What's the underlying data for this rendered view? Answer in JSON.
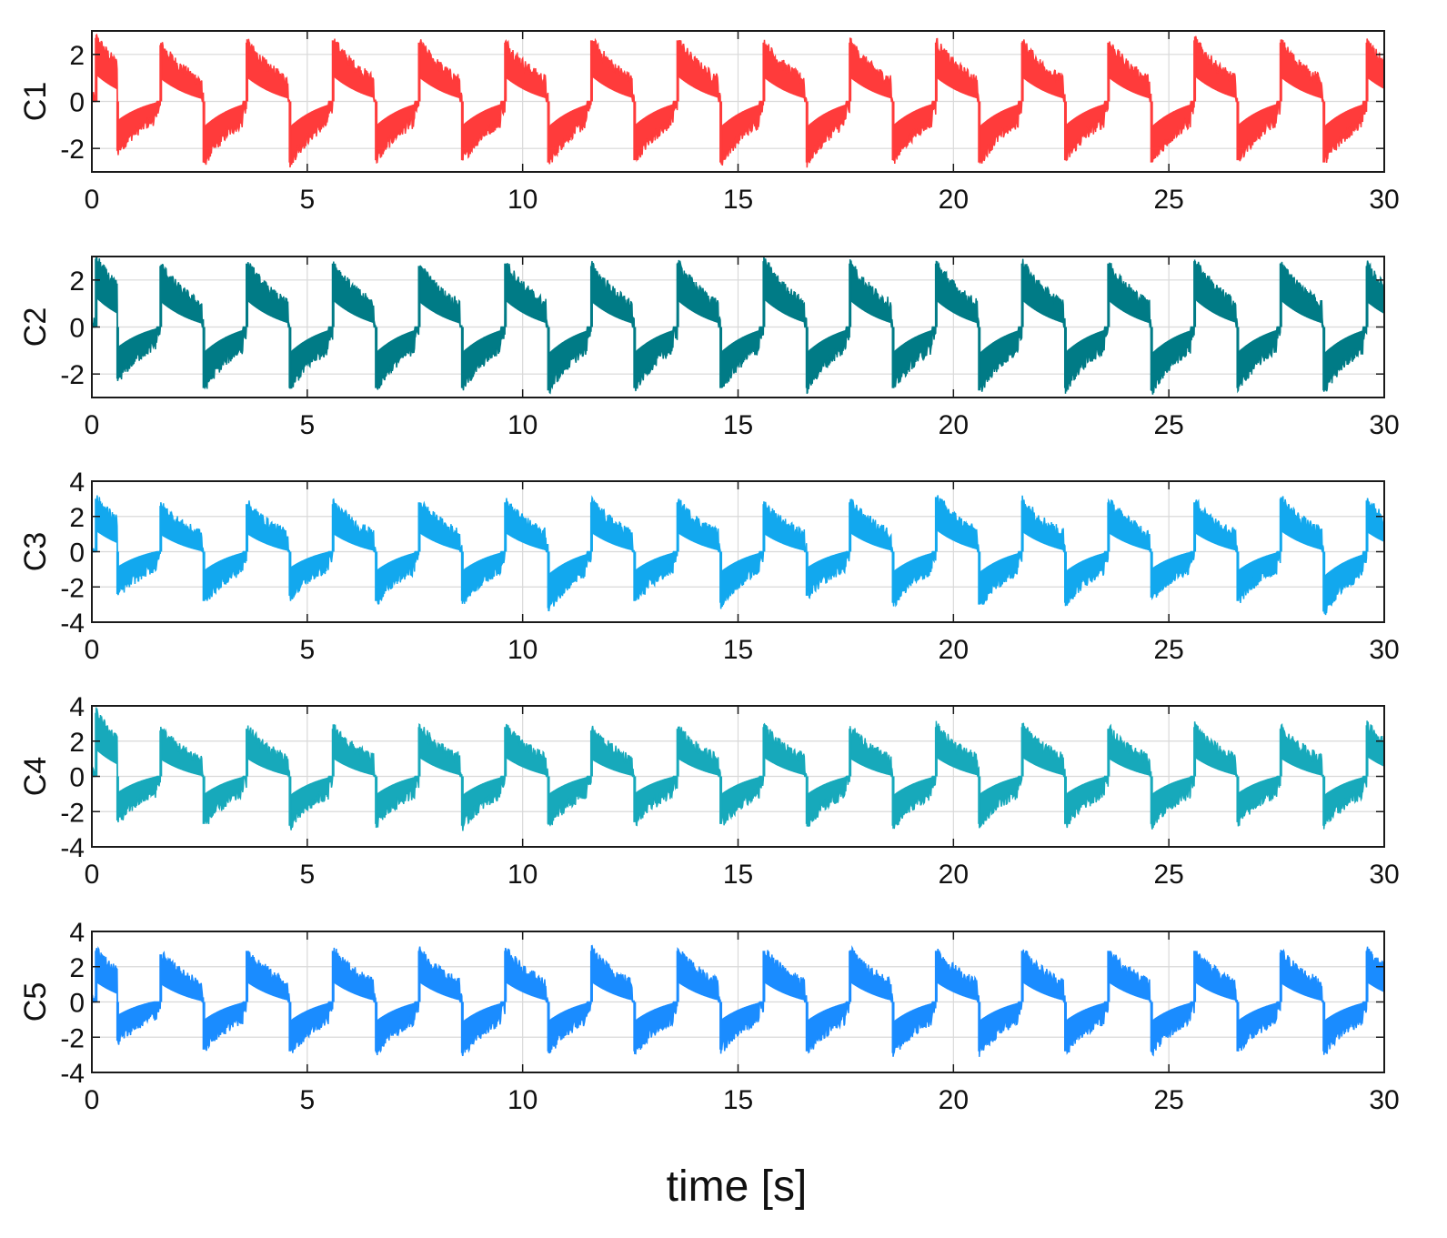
{
  "figure": {
    "xlabel": "time [s]"
  },
  "chart_data": [
    {
      "type": "line",
      "name": "C1",
      "ylabel": "C1",
      "color": "#ff3b3b",
      "xlim": [
        0,
        30
      ],
      "ylim": [
        -3,
        3
      ],
      "x_ticks": [
        0,
        5,
        10,
        15,
        20,
        25,
        30
      ],
      "x_tick_labels": [
        "0",
        "5",
        "10",
        "15",
        "20",
        "25",
        "30"
      ],
      "y_ticks": [
        -2,
        0,
        2
      ],
      "y_tick_labels": [
        "-2",
        "0",
        "2"
      ],
      "grid": true,
      "period_s": 2.0,
      "peak_times_s": [
        0.1,
        1.6,
        3.6,
        5.6,
        7.6,
        9.6,
        11.6,
        13.6,
        15.6,
        17.6,
        19.6,
        21.6,
        23.6,
        25.6,
        27.6,
        29.6
      ],
      "peak_values": [
        2.7,
        2.4,
        2.5,
        2.6,
        2.5,
        2.5,
        2.6,
        2.6,
        2.5,
        2.5,
        2.5,
        2.5,
        2.5,
        2.6,
        2.5,
        2.5
      ],
      "trough_times_s": [
        0.6,
        2.6,
        4.6,
        6.6,
        8.6,
        10.6,
        12.6,
        14.6,
        16.6,
        18.6,
        20.6,
        22.6,
        24.6,
        26.6,
        28.6
      ],
      "trough_values": [
        -2.1,
        -2.6,
        -2.6,
        -2.5,
        -2.5,
        -2.6,
        -2.5,
        -2.6,
        -2.6,
        -2.5,
        -2.6,
        -2.5,
        -2.6,
        -2.5,
        -2.6
      ]
    },
    {
      "type": "line",
      "name": "C2",
      "ylabel": "C2",
      "color": "#007b86",
      "xlim": [
        0,
        30
      ],
      "ylim": [
        -3,
        3
      ],
      "x_ticks": [
        0,
        5,
        10,
        15,
        20,
        25,
        30
      ],
      "x_tick_labels": [
        "0",
        "5",
        "10",
        "15",
        "20",
        "25",
        "30"
      ],
      "y_ticks": [
        -2,
        0,
        2
      ],
      "y_tick_labels": [
        "-2",
        "0",
        "2"
      ],
      "grid": true,
      "period_s": 2.0,
      "peak_times_s": [
        0.1,
        1.6,
        3.6,
        5.6,
        7.6,
        9.6,
        11.6,
        13.6,
        15.6,
        17.6,
        19.6,
        21.6,
        23.6,
        25.6,
        27.6,
        29.6
      ],
      "peak_values": [
        2.9,
        2.6,
        2.7,
        2.7,
        2.6,
        2.7,
        2.6,
        2.7,
        2.8,
        2.7,
        2.7,
        2.7,
        2.7,
        2.8,
        2.7,
        2.6
      ],
      "trough_times_s": [
        0.6,
        2.6,
        4.6,
        6.6,
        8.6,
        10.6,
        12.6,
        14.6,
        16.6,
        18.6,
        20.6,
        22.6,
        24.6,
        26.6,
        28.6
      ],
      "trough_values": [
        -2.2,
        -2.6,
        -2.6,
        -2.6,
        -2.6,
        -2.7,
        -2.6,
        -2.6,
        -2.6,
        -2.6,
        -2.7,
        -2.6,
        -2.7,
        -2.6,
        -2.7
      ]
    },
    {
      "type": "line",
      "name": "C3",
      "ylabel": "C3",
      "color": "#12a8ee",
      "xlim": [
        0,
        30
      ],
      "ylim": [
        -4,
        4
      ],
      "x_ticks": [
        0,
        5,
        10,
        15,
        20,
        25,
        30
      ],
      "x_tick_labels": [
        "0",
        "5",
        "10",
        "15",
        "20",
        "25",
        "30"
      ],
      "y_ticks": [
        -4,
        -2,
        0,
        2,
        4
      ],
      "y_tick_labels": [
        "-4",
        "-2",
        "0",
        "2",
        "4"
      ],
      "grid": true,
      "period_s": 2.0,
      "peak_times_s": [
        0.1,
        1.6,
        3.6,
        5.6,
        7.6,
        9.6,
        11.6,
        13.6,
        15.6,
        17.6,
        19.6,
        21.6,
        23.6,
        25.6,
        27.6,
        29.6
      ],
      "peak_values": [
        3.0,
        2.6,
        2.7,
        2.7,
        2.8,
        2.8,
        2.8,
        2.8,
        2.7,
        2.8,
        3.1,
        2.9,
        2.8,
        2.8,
        3.0,
        2.9
      ],
      "trough_times_s": [
        0.6,
        2.6,
        4.6,
        6.6,
        8.6,
        10.6,
        12.6,
        14.6,
        16.6,
        18.6,
        20.6,
        22.6,
        24.6,
        26.6,
        28.6
      ],
      "trough_values": [
        -2.4,
        -2.8,
        -2.5,
        -2.8,
        -2.8,
        -3.2,
        -2.8,
        -2.9,
        -2.5,
        -2.9,
        -3.0,
        -2.9,
        -2.6,
        -2.8,
        -3.4
      ]
    },
    {
      "type": "line",
      "name": "C4",
      "ylabel": "C4",
      "color": "#17a9bb",
      "xlim": [
        0,
        30
      ],
      "ylim": [
        -4,
        4
      ],
      "x_ticks": [
        0,
        5,
        10,
        15,
        20,
        25,
        30
      ],
      "x_tick_labels": [
        "0",
        "5",
        "10",
        "15",
        "20",
        "25",
        "30"
      ],
      "y_ticks": [
        -4,
        -2,
        0,
        2,
        4
      ],
      "y_tick_labels": [
        "-4",
        "-2",
        "0",
        "2",
        "4"
      ],
      "grid": true,
      "period_s": 2.0,
      "peak_times_s": [
        0.1,
        1.6,
        3.6,
        5.6,
        7.6,
        9.6,
        11.6,
        13.6,
        15.6,
        17.6,
        19.6,
        21.6,
        23.6,
        25.6,
        27.6,
        29.6
      ],
      "peak_values": [
        3.6,
        2.6,
        2.7,
        2.7,
        2.8,
        2.8,
        2.6,
        2.7,
        2.8,
        2.7,
        2.8,
        2.8,
        2.7,
        2.8,
        2.7,
        2.9
      ],
      "trough_times_s": [
        0.6,
        2.6,
        4.6,
        6.6,
        8.6,
        10.6,
        12.6,
        14.6,
        16.6,
        18.6,
        20.6,
        22.6,
        24.6,
        26.6,
        28.6
      ],
      "trough_values": [
        -2.5,
        -2.7,
        -2.8,
        -2.7,
        -2.8,
        -2.7,
        -2.6,
        -2.7,
        -2.7,
        -2.8,
        -2.7,
        -2.7,
        -2.7,
        -2.6,
        -2.8
      ]
    },
    {
      "type": "line",
      "name": "C5",
      "ylabel": "C5",
      "color": "#1a8cff",
      "xlim": [
        0,
        30
      ],
      "ylim": [
        -4,
        4
      ],
      "x_ticks": [
        0,
        5,
        10,
        15,
        20,
        25,
        30
      ],
      "x_tick_labels": [
        "0",
        "5",
        "10",
        "15",
        "20",
        "25",
        "30"
      ],
      "y_ticks": [
        -4,
        -2,
        0,
        2,
        4
      ],
      "y_tick_labels": [
        "-4",
        "-2",
        "0",
        "2",
        "4"
      ],
      "grid": true,
      "period_s": 2.0,
      "peak_times_s": [
        0.1,
        1.6,
        3.6,
        5.6,
        7.6,
        9.6,
        11.6,
        13.6,
        15.6,
        17.6,
        19.6,
        21.6,
        23.6,
        25.6,
        27.6,
        29.6
      ],
      "peak_values": [
        2.9,
        2.7,
        2.9,
        2.9,
        2.9,
        2.9,
        2.9,
        2.9,
        2.9,
        2.9,
        2.9,
        2.9,
        2.9,
        2.9,
        2.8,
        2.9
      ],
      "trough_times_s": [
        0.6,
        2.6,
        4.6,
        6.6,
        8.6,
        10.6,
        12.6,
        14.6,
        16.6,
        18.6,
        20.6,
        22.6,
        24.6,
        26.6,
        28.6
      ],
      "trough_values": [
        -2.2,
        -2.7,
        -2.8,
        -2.8,
        -2.9,
        -2.8,
        -2.8,
        -2.7,
        -2.8,
        -2.9,
        -2.8,
        -2.8,
        -2.8,
        -2.8,
        -2.8
      ]
    }
  ]
}
